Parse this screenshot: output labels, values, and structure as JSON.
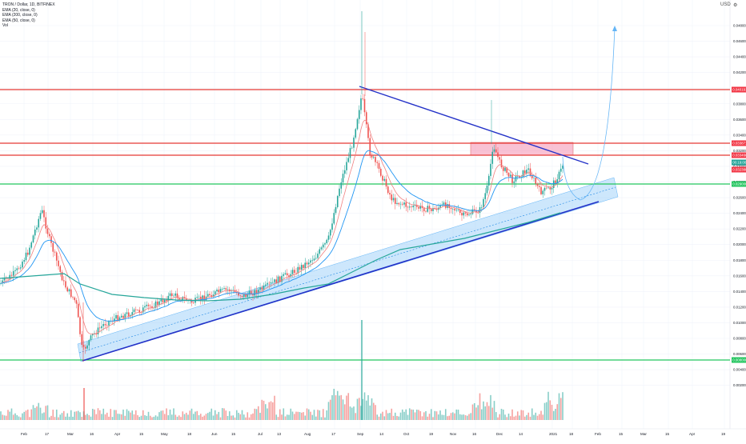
{
  "legend": {
    "symbol": "TRON / Dollar, 1D, BITFINEX",
    "ema20": "EMA (20, close, 0)",
    "ema200": "EMA (200, close, 0)",
    "ema50": "EMA (50, close, 0)",
    "vol": "Vol"
  },
  "toolbar": {
    "currency": "USD",
    "settings_icon": "gear-icon"
  },
  "price_axis": {
    "ticks": [
      "0.048000",
      "0.046000",
      "0.044000",
      "0.042000",
      "0.040000",
      "0.038000",
      "0.036000",
      "0.034000",
      "0.032000",
      "0.030000",
      "0.028000",
      "0.026000",
      "0.024000",
      "0.022000",
      "0.020000",
      "0.018000",
      "0.016000",
      "0.014000",
      "0.012000",
      "0.010000",
      "0.008000",
      "0.006000",
      "0.004000",
      "0.002000"
    ],
    "tags": [
      {
        "text": "0.040191",
        "color": "#f23645"
      },
      {
        "text": "0.033871",
        "color": "#f23645"
      },
      {
        "text": "0.033466",
        "color": "#f23645"
      },
      {
        "text": "00:19:00",
        "color": "#26a69a"
      },
      {
        "text": "0.032380",
        "color": "#f23645"
      },
      {
        "text": "0.029000",
        "color": "#22c55e"
      },
      {
        "text": "0.008000",
        "color": "#22c55e"
      }
    ]
  },
  "time_axis": {
    "labels": [
      "Feb",
      "17",
      "Mar",
      "16",
      "Apr",
      "15",
      "May",
      "18",
      "Jun",
      "15",
      "Jul",
      "13",
      "Aug",
      "17",
      "Sep",
      "14",
      "Oct",
      "19",
      "Nov",
      "16",
      "Dec",
      "14",
      "2021",
      "18",
      "Feb",
      "15",
      "Mar",
      "15",
      "Apr",
      "19"
    ]
  },
  "colors": {
    "up": "#26a69a",
    "down": "#ef5350",
    "ema20": "#f08080",
    "ema50": "#2196f3",
    "ema200": "#26a69a",
    "resistance": "#e53935",
    "support": "#22c55e",
    "trendline": "#2432c8",
    "channel": "#90caf9",
    "zone": "#f48fb1"
  },
  "chart_data": {
    "type": "candlestick",
    "title": "TRON / Dollar, 1D, BITFINEX",
    "ylim": [
      0.001,
      0.05
    ],
    "horizontal_levels": [
      {
        "value": 0.040191,
        "color": "red"
      },
      {
        "value": 0.033871,
        "color": "red"
      },
      {
        "value": 0.03238,
        "color": "red"
      },
      {
        "value": 0.029,
        "color": "green"
      },
      {
        "value": 0.008,
        "color": "green"
      }
    ],
    "series_hint": [
      "price",
      "EMA 20",
      "EMA 50",
      "EMA 200",
      "volume"
    ]
  }
}
